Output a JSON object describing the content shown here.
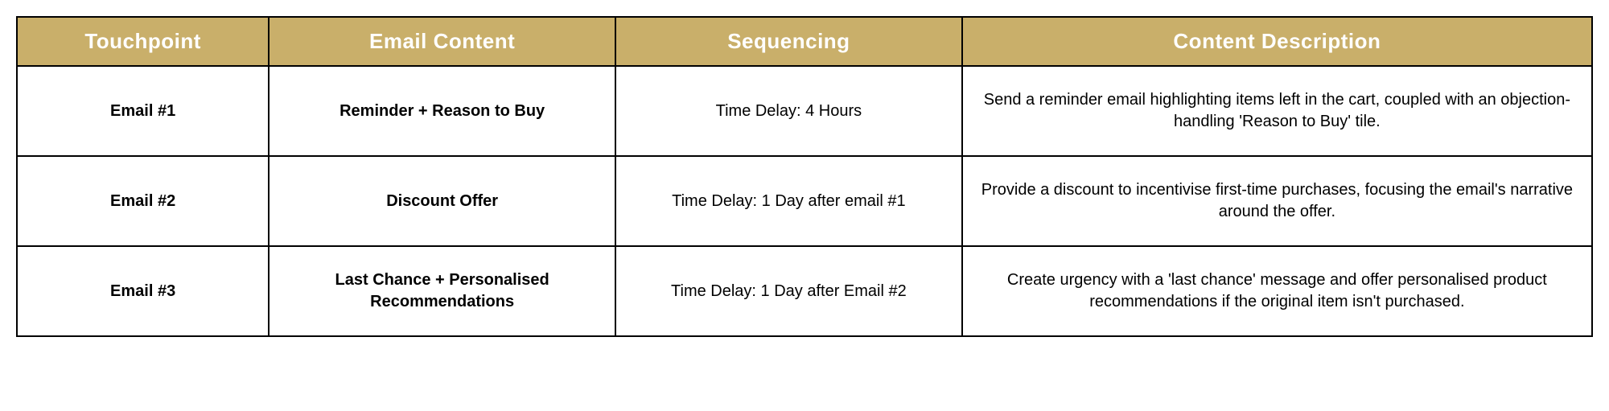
{
  "table": {
    "header_bg": "#c9af6a",
    "header_color": "#ffffff",
    "border_color": "#000000",
    "columns": [
      {
        "label": "Touchpoint",
        "width": "16%"
      },
      {
        "label": "Email Content",
        "width": "22%"
      },
      {
        "label": "Sequencing",
        "width": "22%"
      },
      {
        "label": "Content Description",
        "width": "40%"
      }
    ],
    "rows": [
      {
        "touchpoint": "Email #1",
        "content": "Reminder + Reason to Buy",
        "sequencing": "Time Delay: 4 Hours",
        "description": "Send a reminder email highlighting items left in the cart, coupled with an objection-handling 'Reason to Buy' tile."
      },
      {
        "touchpoint": "Email #2",
        "content": "Discount Offer",
        "sequencing": "Time Delay: 1 Day after email #1",
        "description": "Provide a discount to incentivise first-time purchases, focusing the email's narrative around the offer."
      },
      {
        "touchpoint": "Email #3",
        "content": "Last Chance + Personalised Recommendations",
        "sequencing": "Time Delay: 1 Day after Email #2",
        "description": "Create urgency with a 'last chance' message and offer personalised product recommendations if the original item isn't purchased."
      }
    ]
  }
}
